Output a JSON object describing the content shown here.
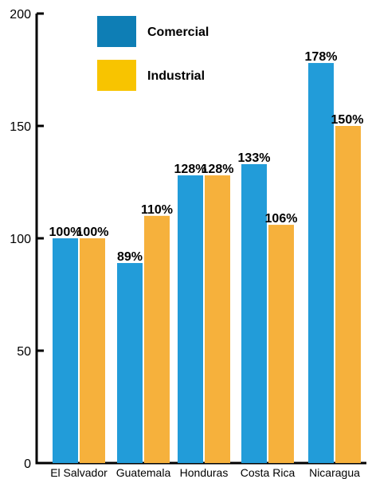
{
  "chart_data": {
    "type": "bar",
    "categories": [
      "El Salvador",
      "Guatemala",
      "Honduras",
      "Costa Rica",
      "Nicaragua"
    ],
    "series": [
      {
        "name": "Comercial",
        "values": [
          100,
          89,
          128,
          133,
          178
        ],
        "labels": [
          "100%",
          "89%",
          "128%",
          "133%",
          "178%"
        ],
        "color": "#229CD9"
      },
      {
        "name": "Industrial",
        "values": [
          100,
          110,
          128,
          106,
          150
        ],
        "labels": [
          "100%",
          "110%",
          "128%",
          "106%",
          "150%"
        ],
        "color": "#F6B13C"
      }
    ],
    "legend_colors": [
      "#0E7EB5",
      "#F8C400"
    ],
    "yticks": [
      0,
      50,
      100,
      150,
      200
    ],
    "ylim": [
      0,
      200
    ],
    "grid": false,
    "legend_position": "top-left"
  }
}
